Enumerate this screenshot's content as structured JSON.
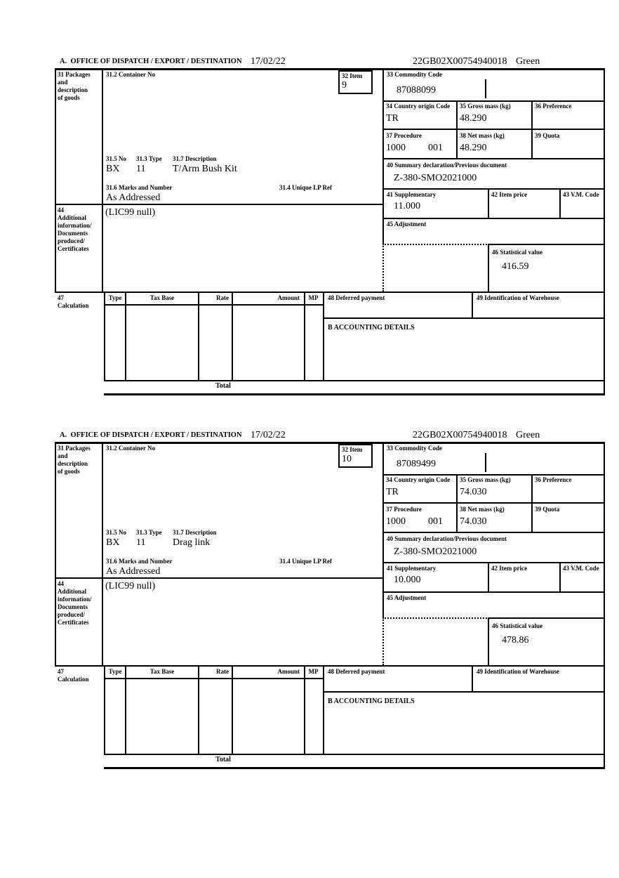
{
  "header": {
    "title": "A.  OFFICE OF DISPATCH / EXPORT / DESTINATION",
    "date": "17/02/22",
    "reference": "22GB02X00754940018",
    "status": "Green"
  },
  "labels": {
    "box31": "31 Packages\nand\ndescription\nof goods",
    "box31_2": "31.2 Container No",
    "box32": "32 Item",
    "box33": "33 Commodity Code",
    "box34": "34 Country origin Code",
    "box35": "35 Gross mass (kg)",
    "box36": "36 Preference",
    "box37": "37 Procedure",
    "box38": "38 Net mass (kg)",
    "box39": "39 Quota",
    "box40": "40 Summary declaration/Previous document",
    "box41": "41 Supplementary",
    "box42": "42 Item price",
    "box43": "43 V.M. Code",
    "box44": "44\nAdditional\ninformation/\nDocuments\nproduced/\nCertificates",
    "box45": "45 Adjustment",
    "box46": "46 Statistical value",
    "box47": "47\nCalculation",
    "box48": "48 Deferred payment",
    "box49": "49 Identification of Warehouse",
    "accounting": "B ACCOUNTING DETAILS",
    "box31_5": "31.5 No",
    "box31_3": "31.3 Type",
    "box31_7": "31.7 Description",
    "box31_6": "31.6 Marks and Number",
    "box31_4": "31.4 Unique LP Ref",
    "calc_type": "Type",
    "calc_tax_base": "Tax Base",
    "calc_rate": "Rate",
    "calc_amount": "Amount",
    "calc_mp": "MP",
    "total": "Total"
  },
  "items": [
    {
      "item_no": "9",
      "commodity_code": "87088099",
      "country_origin": "TR",
      "gross_mass": "48.290",
      "procedure": "1000",
      "procedure_qualifier": "001",
      "net_mass": "48.290",
      "previous_document": "Z-380-SMO2021000",
      "supplementary": "11.000",
      "statistical_value": "416.59",
      "package_no": "BX",
      "package_type": "11",
      "goods_description": "T/Arm Bush Kit",
      "marks_and_number": "As Addressed",
      "additional_information": "(LIC99 null)"
    },
    {
      "item_no": "10",
      "commodity_code": "87089499",
      "country_origin": "TR",
      "gross_mass": "74.030",
      "procedure": "1000",
      "procedure_qualifier": "001",
      "net_mass": "74.030",
      "previous_document": "Z-380-SMO2021000",
      "supplementary": "10.000",
      "statistical_value": "478.86",
      "package_no": "BX",
      "package_type": "11",
      "goods_description": "Drag link",
      "marks_and_number": "As Addressed",
      "additional_information": "(LIC99 null)"
    }
  ]
}
